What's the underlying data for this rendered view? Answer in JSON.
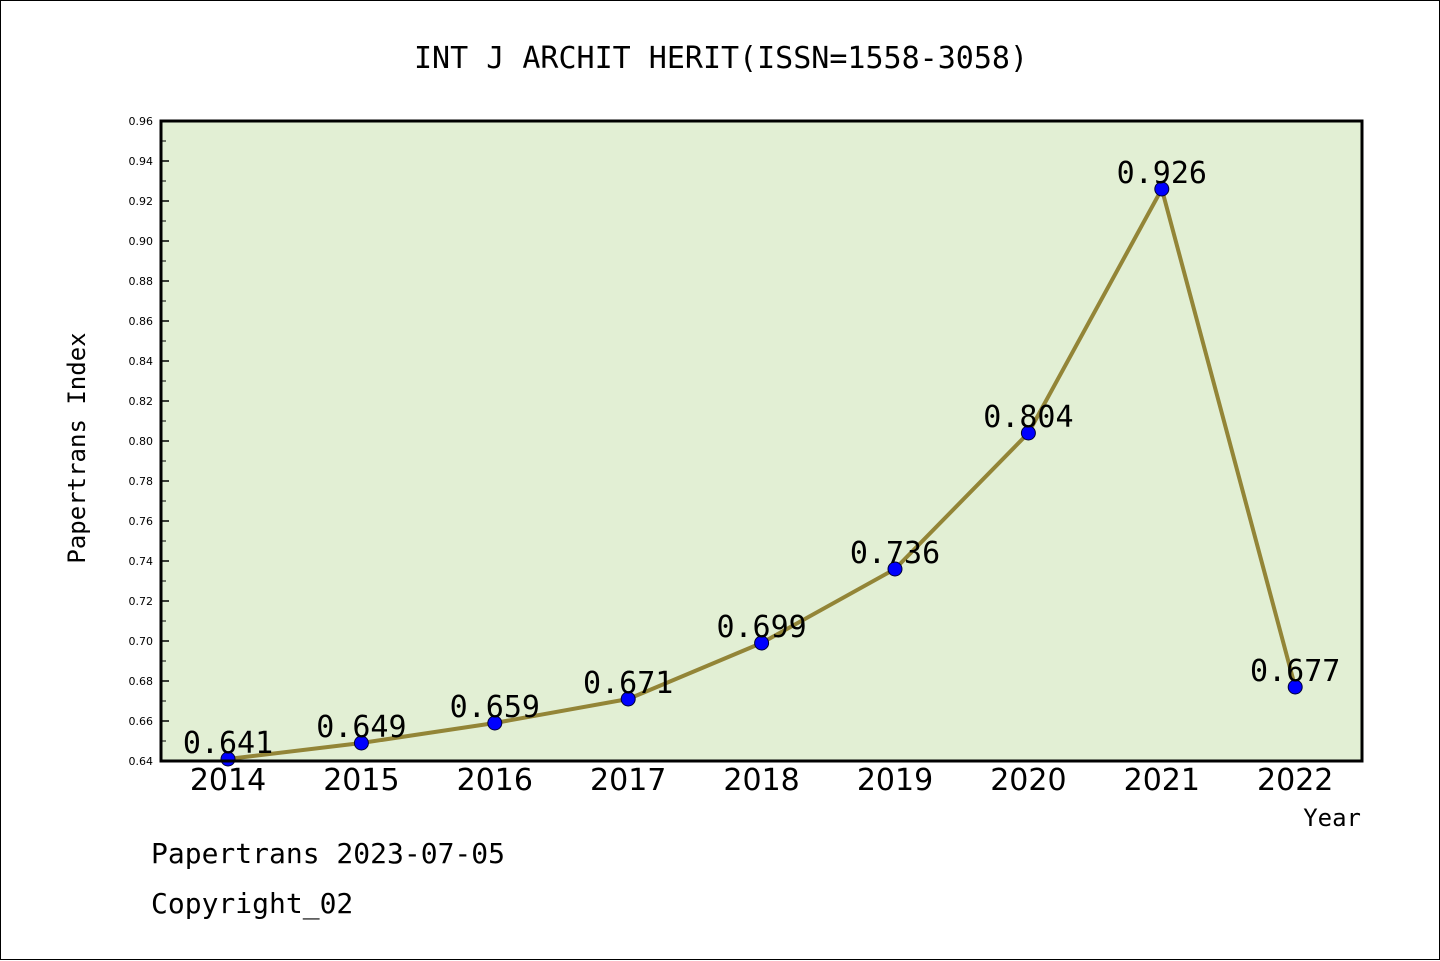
{
  "chart_data": {
    "type": "line",
    "title": "INT J ARCHIT HERIT(ISSN=1558-3058)",
    "xlabel": "Year",
    "ylabel": "Papertrans Index",
    "categories": [
      "2014",
      "2015",
      "2016",
      "2017",
      "2018",
      "2019",
      "2020",
      "2021",
      "2022"
    ],
    "series": [
      {
        "values": [
          0.641,
          0.649,
          0.659,
          0.671,
          0.699,
          0.736,
          0.804,
          0.926,
          0.677
        ],
        "data_labels": [
          "0.641",
          "0.649",
          "0.659",
          "0.671",
          "0.699",
          "0.736",
          "0.804",
          "0.926",
          "0.677"
        ]
      }
    ],
    "ylim": [
      0.64,
      0.96
    ],
    "yticks": [
      "0.64",
      "0.66",
      "0.68",
      "0.70",
      "0.72",
      "0.74",
      "0.76",
      "0.78",
      "0.80",
      "0.82",
      "0.84",
      "0.86",
      "0.88",
      "0.90",
      "0.92",
      "0.94",
      "0.96"
    ],
    "grid": false,
    "legend": "none",
    "colors": {
      "plot_background": "#e2efd4",
      "line": "#938537",
      "marker": "#0000ff",
      "axis": "#000000"
    }
  },
  "footer": {
    "line1": "Papertrans 2023-07-05",
    "line2": "Copyright_02"
  }
}
